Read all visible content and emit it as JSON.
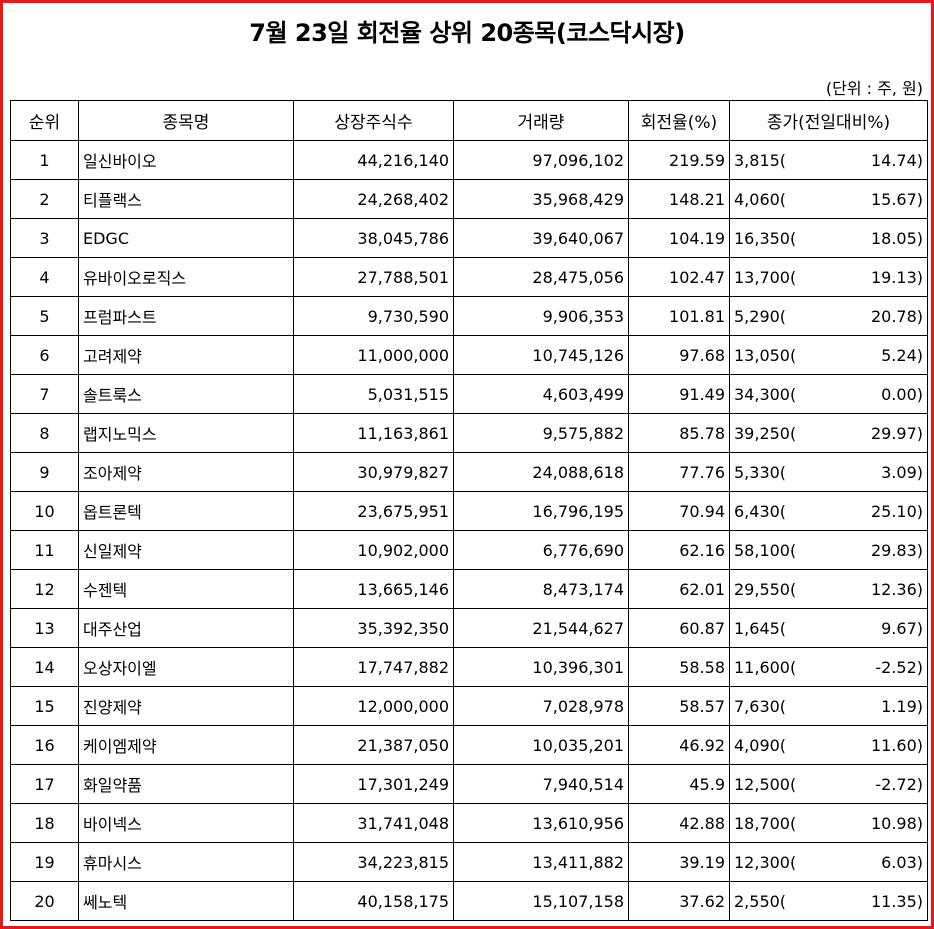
{
  "title": "7월 23일 회전율 상위 20종목(코스닥시장)",
  "unit_note": "(단위 : 주, 원)",
  "columns": [
    "순위",
    "종목명",
    "상장주식수",
    "거래량",
    "회전율(%)",
    "종가(전일대비%)"
  ],
  "rows": [
    {
      "rank": "1",
      "name": "일신바이오",
      "shares": "44,216,140",
      "volume": "97,096,102",
      "turnover": "219.59",
      "price": "3,815(",
      "change": "14.74)"
    },
    {
      "rank": "2",
      "name": "티플랙스",
      "shares": "24,268,402",
      "volume": "35,968,429",
      "turnover": "148.21",
      "price": "4,060(",
      "change": "15.67)"
    },
    {
      "rank": "3",
      "name": "EDGC",
      "shares": "38,045,786",
      "volume": "39,640,067",
      "turnover": "104.19",
      "price": "16,350(",
      "change": "18.05)"
    },
    {
      "rank": "4",
      "name": "유바이오로직스",
      "shares": "27,788,501",
      "volume": "28,475,056",
      "turnover": "102.47",
      "price": "13,700(",
      "change": "19.13)"
    },
    {
      "rank": "5",
      "name": "프럼파스트",
      "shares": "9,730,590",
      "volume": "9,906,353",
      "turnover": "101.81",
      "price": "5,290(",
      "change": "20.78)"
    },
    {
      "rank": "6",
      "name": "고려제약",
      "shares": "11,000,000",
      "volume": "10,745,126",
      "turnover": "97.68",
      "price": "13,050(",
      "change": "5.24)"
    },
    {
      "rank": "7",
      "name": "솔트룩스",
      "shares": "5,031,515",
      "volume": "4,603,499",
      "turnover": "91.49",
      "price": "34,300(",
      "change": "0.00)"
    },
    {
      "rank": "8",
      "name": "랩지노믹스",
      "shares": "11,163,861",
      "volume": "9,575,882",
      "turnover": "85.78",
      "price": "39,250(",
      "change": "29.97)"
    },
    {
      "rank": "9",
      "name": "조아제약",
      "shares": "30,979,827",
      "volume": "24,088,618",
      "turnover": "77.76",
      "price": "5,330(",
      "change": "3.09)"
    },
    {
      "rank": "10",
      "name": "옵트론텍",
      "shares": "23,675,951",
      "volume": "16,796,195",
      "turnover": "70.94",
      "price": "6,430(",
      "change": "25.10)"
    },
    {
      "rank": "11",
      "name": "신일제약",
      "shares": "10,902,000",
      "volume": "6,776,690",
      "turnover": "62.16",
      "price": "58,100(",
      "change": "29.83)"
    },
    {
      "rank": "12",
      "name": "수젠텍",
      "shares": "13,665,146",
      "volume": "8,473,174",
      "turnover": "62.01",
      "price": "29,550(",
      "change": "12.36)"
    },
    {
      "rank": "13",
      "name": "대주산업",
      "shares": "35,392,350",
      "volume": "21,544,627",
      "turnover": "60.87",
      "price": "1,645(",
      "change": "9.67)"
    },
    {
      "rank": "14",
      "name": "오상자이엘",
      "shares": "17,747,882",
      "volume": "10,396,301",
      "turnover": "58.58",
      "price": "11,600(",
      "change": "-2.52)"
    },
    {
      "rank": "15",
      "name": "진양제약",
      "shares": "12,000,000",
      "volume": "7,028,978",
      "turnover": "58.57",
      "price": "7,630(",
      "change": "1.19)"
    },
    {
      "rank": "16",
      "name": "케이엠제약",
      "shares": "21,387,050",
      "volume": "10,035,201",
      "turnover": "46.92",
      "price": "4,090(",
      "change": "11.60)"
    },
    {
      "rank": "17",
      "name": "화일약품",
      "shares": "17,301,249",
      "volume": "7,940,514",
      "turnover": "45.9",
      "price": "12,500(",
      "change": "-2.72)"
    },
    {
      "rank": "18",
      "name": "바이넥스",
      "shares": "31,741,048",
      "volume": "13,610,956",
      "turnover": "42.88",
      "price": "18,700(",
      "change": "10.98)"
    },
    {
      "rank": "19",
      "name": "휴마시스",
      "shares": "34,223,815",
      "volume": "13,411,882",
      "turnover": "39.19",
      "price": "12,300(",
      "change": "6.03)"
    },
    {
      "rank": "20",
      "name": "쎄노텍",
      "shares": "40,158,175",
      "volume": "15,107,158",
      "turnover": "37.62",
      "price": "2,550(",
      "change": "11.35)"
    }
  ]
}
